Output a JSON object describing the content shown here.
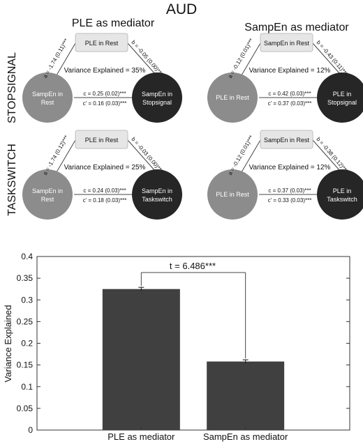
{
  "figure": {
    "title": "AUD"
  },
  "rows": {
    "stopsignal": "STOPSIGNAL",
    "taskswitch": "TASKSWITCH"
  },
  "columns": {
    "left": "PLE as mediator",
    "right": "SampEn as mediator"
  },
  "panels": [
    {
      "id": "stop-ple",
      "mediator": "PLE in Rest",
      "x_node": "SampEn in Rest",
      "y_node": "SampEn in Stopsignal",
      "path_a": "a = -1.74 (0.11)***",
      "path_b": "b = -0.05 (0.00)***",
      "variance": "Variance Explained = 35%",
      "path_c": "c = 0.25 (0.02)***",
      "path_c_prime": "c' = 0.16 (0.03)***"
    },
    {
      "id": "stop-sampen",
      "mediator": "SampEn in Rest",
      "x_node": "PLE in Rest",
      "y_node": "PLE in Stopsignal",
      "path_a": "a = -0.12 (0.01)***",
      "path_b": "b = -0.43 (0.11)***",
      "variance": "Variance Explained = 12%",
      "path_c": "c = 0.42 (0.03)***",
      "path_c_prime": "c' = 0.37 (0.03)***"
    },
    {
      "id": "task-ple",
      "mediator": "PLE in Rest",
      "x_node": "SampEn in Rest",
      "y_node": "SampEn in Taskswitch",
      "path_a": "a = -1.74 (0.12)***",
      "path_b": "b = -0.03 (0.00)***",
      "variance": "Variance Explained = 25%",
      "path_c": "c = 0.24 (0.03)***",
      "path_c_prime": "c' = 0.18 (0.03)***"
    },
    {
      "id": "task-sampen",
      "mediator": "SampEn in Rest",
      "x_node": "PLE in Rest",
      "y_node": "PLE in Taskswitch",
      "path_a": "a = -0.12 (0.01)***",
      "path_b": "b = -0.38 (0.12)***",
      "variance": "Variance Explained = 12%",
      "path_c": "c = 0.37 (0.03)***",
      "path_c_prime": "c' = 0.33 (0.03)***"
    }
  ],
  "colors": {
    "x_node": "#8c8c8c",
    "y_node": "#262626",
    "mediator_box": "#e6e6e6",
    "bar": "#404040"
  },
  "chart_data": {
    "type": "bar",
    "categories": [
      "PLE as mediator",
      "SampEn as mediator"
    ],
    "values": [
      0.325,
      0.158
    ],
    "errors": [
      0.004,
      0.004
    ],
    "ylabel": "Variance Explained",
    "ylim": [
      0,
      0.4
    ],
    "yticks": [
      "0",
      "0.05",
      "0.1",
      "0.15",
      "0.2",
      "0.25",
      "0.3",
      "0.35",
      "0.4"
    ],
    "annotation": "t = 6.486***",
    "grid": false
  }
}
